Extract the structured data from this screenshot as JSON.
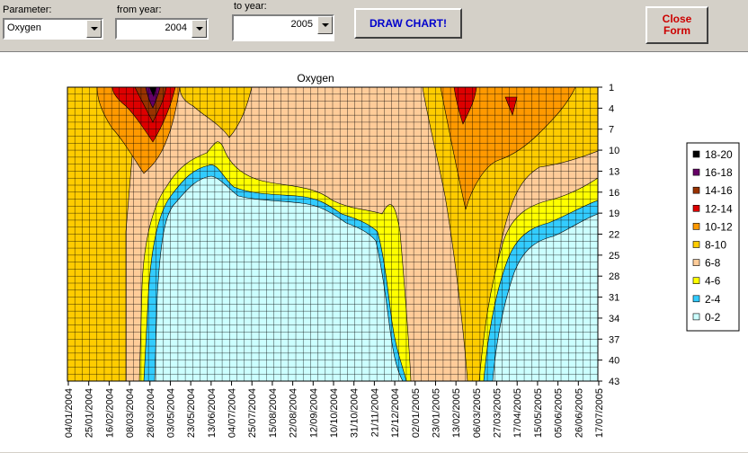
{
  "toolbar": {
    "parameter_label": "Parameter:",
    "parameter_value": "Oxygen",
    "from_year_label": "from year:",
    "from_year_value": "2004",
    "to_year_label": "to year:",
    "to_year_value": "2005",
    "draw_chart_label": "DRAW CHART!",
    "close_form_label": "Close Form"
  },
  "colors": {
    "draw_chart_text": "#0000cc",
    "close_form_text": "#cc0000"
  },
  "chart_data": {
    "type": "heatmap",
    "title": "Oxygen",
    "x_tick_labels": [
      "04/01/2004",
      "25/01/2004",
      "16/02/2004",
      "08/03/2004",
      "28/03/2004",
      "03/05/2004",
      "23/05/2004",
      "13/06/2004",
      "04/07/2004",
      "25/07/2004",
      "15/08/2004",
      "22/08/2004",
      "12/09/2004",
      "10/10/2004",
      "31/10/2004",
      "21/11/2004",
      "12/12/2004",
      "02/01/2005",
      "23/01/2005",
      "13/02/2005",
      "06/03/2005",
      "27/03/2005",
      "17/04/2005",
      "15/05/2005",
      "05/06/2005",
      "26/06/2005",
      "17/07/2005"
    ],
    "y_tick_labels": [
      "1",
      "4",
      "7",
      "10",
      "13",
      "16",
      "19",
      "22",
      "25",
      "28",
      "31",
      "34",
      "37",
      "40",
      "43"
    ],
    "y_axis_side": "right",
    "y_axis_reversed": true,
    "grid": true,
    "legend_position": "right",
    "legend": [
      {
        "label": "18-20",
        "color": "#000000"
      },
      {
        "label": "16-18",
        "color": "#660066"
      },
      {
        "label": "14-16",
        "color": "#993300"
      },
      {
        "label": "12-14",
        "color": "#dd0000"
      },
      {
        "label": "10-12",
        "color": "#ff9900"
      },
      {
        "label": "8-10",
        "color": "#ffcc00"
      },
      {
        "label": "6-8",
        "color": "#ffcc99"
      },
      {
        "label": "4-6",
        "color": "#ffff00"
      },
      {
        "label": "2-4",
        "color": "#33ccff"
      },
      {
        "label": "0-2",
        "color": "#ccffff"
      }
    ]
  }
}
